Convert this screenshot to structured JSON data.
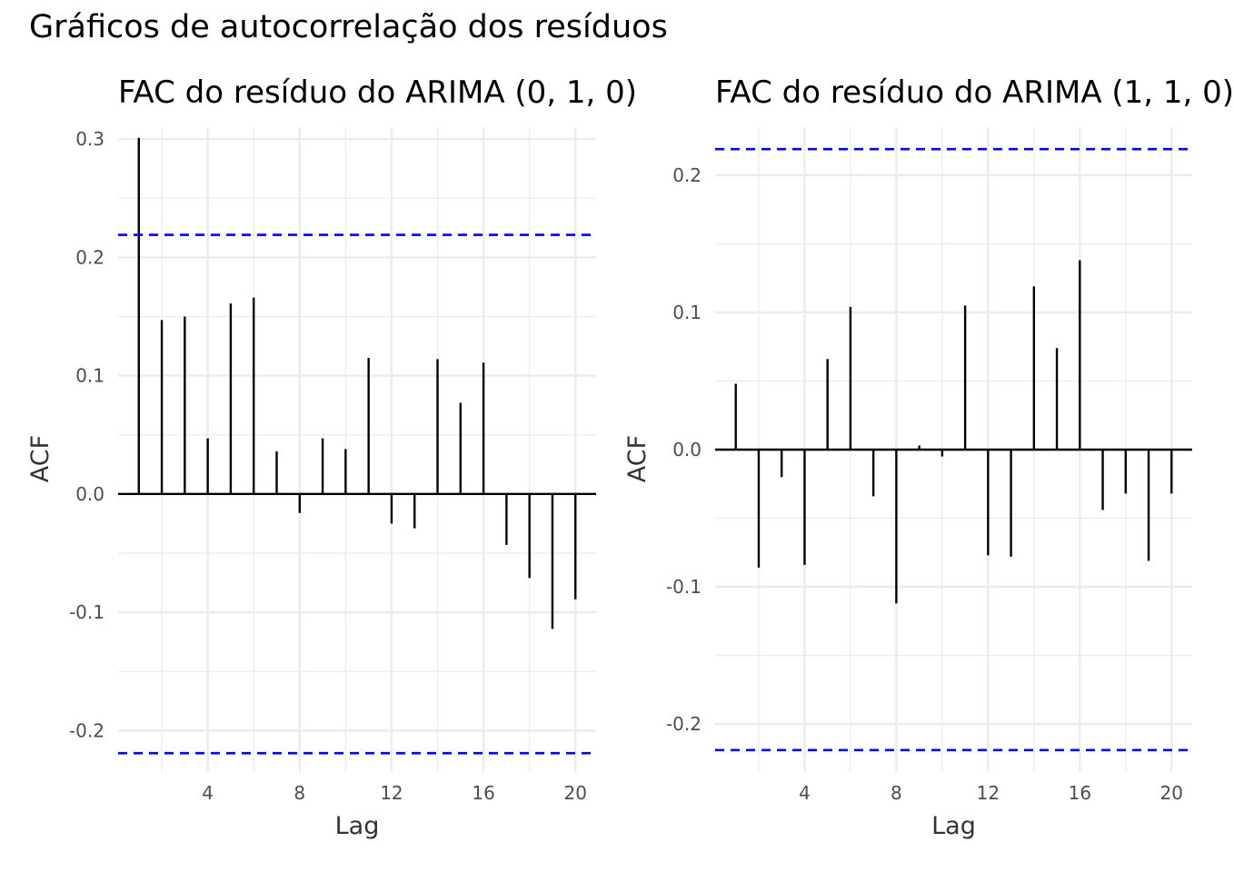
{
  "title": "Gráficos de autocorrelação dos resíduos",
  "chart_data": [
    {
      "type": "bar",
      "title": "FAC do resíduo do ARIMA (0, 1, 0)",
      "xlabel": "Lag",
      "ylabel": "ACF",
      "xlim": [
        0.1,
        20.9
      ],
      "ylim": [
        -0.235,
        0.31
      ],
      "x_ticks": [
        4,
        8,
        12,
        16,
        20
      ],
      "y_ticks": [
        -0.2,
        -0.1,
        0.0,
        0.1,
        0.2,
        0.3
      ],
      "y_tick_labels": [
        "-0.2",
        "-0.1",
        "0.0",
        "0.1",
        "0.2",
        "0.3"
      ],
      "x_tick_labels": [
        "4",
        "8",
        "12",
        "16",
        "20"
      ],
      "grid": true,
      "confidence_bounds": [
        0.219,
        -0.219
      ],
      "bound_color": "#0000ff",
      "bar_color": "#000000",
      "x": [
        1,
        2,
        3,
        4,
        5,
        6,
        7,
        8,
        9,
        10,
        11,
        12,
        13,
        14,
        15,
        16,
        17,
        18,
        19,
        20
      ],
      "values": [
        0.301,
        0.147,
        0.15,
        0.047,
        0.161,
        0.166,
        0.036,
        -0.016,
        0.047,
        0.038,
        0.115,
        -0.025,
        -0.029,
        0.114,
        0.077,
        0.111,
        -0.043,
        -0.071,
        -0.114,
        -0.089
      ]
    },
    {
      "type": "bar",
      "title": "FAC do resíduo do ARIMA (1, 1, 0)",
      "xlabel": "Lag",
      "ylabel": "ACF",
      "xlim": [
        0.1,
        20.9
      ],
      "ylim": [
        -0.235,
        0.235
      ],
      "x_ticks": [
        4,
        8,
        12,
        16,
        20
      ],
      "y_ticks": [
        -0.2,
        -0.1,
        0.0,
        0.1,
        0.2
      ],
      "y_tick_labels": [
        "-0.2",
        "-0.1",
        "0.0",
        "0.1",
        "0.2"
      ],
      "x_tick_labels": [
        "4",
        "8",
        "12",
        "16",
        "20"
      ],
      "grid": true,
      "confidence_bounds": [
        0.219,
        -0.219
      ],
      "bound_color": "#0000ff",
      "bar_color": "#000000",
      "x": [
        1,
        2,
        3,
        4,
        5,
        6,
        7,
        8,
        9,
        10,
        11,
        12,
        13,
        14,
        15,
        16,
        17,
        18,
        19,
        20
      ],
      "values": [
        0.048,
        -0.086,
        -0.02,
        -0.084,
        0.066,
        0.104,
        -0.034,
        -0.112,
        0.003,
        -0.005,
        0.105,
        -0.077,
        -0.078,
        0.119,
        0.074,
        0.138,
        -0.044,
        -0.032,
        -0.081,
        -0.032
      ]
    }
  ]
}
